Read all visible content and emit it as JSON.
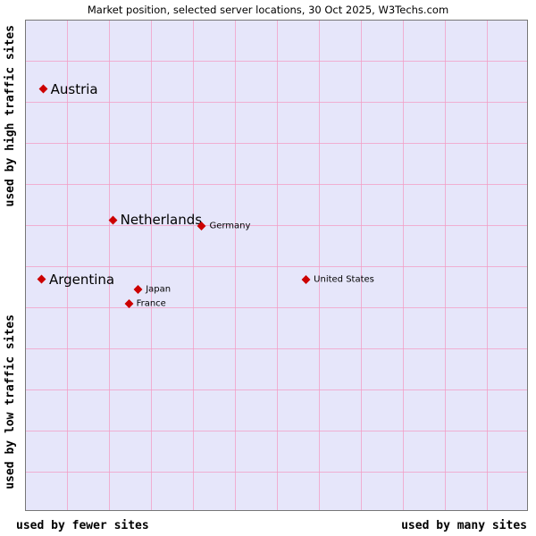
{
  "title": "Market position, selected server locations, 30 Oct 2025, W3Techs.com",
  "axes": {
    "y_top": "used by high traffic sites",
    "y_bottom": "used by low traffic sites",
    "x_left": "used by fewer sites",
    "x_right": "used by many sites"
  },
  "colors": {
    "plot_background": "#e6e6fa",
    "grid": "#f39cc4",
    "marker": "#cc0000",
    "text": "#000000"
  },
  "chart_data": {
    "type": "scatter",
    "title": "Market position, selected server locations, 30 Oct 2025, W3Techs.com",
    "xlabel_left": "used by fewer sites",
    "xlabel_right": "used by many sites",
    "ylabel_top": "used by high traffic sites",
    "ylabel_bottom": "used by low traffic sites",
    "x_range": [
      0,
      100
    ],
    "y_range": [
      0,
      100
    ],
    "grid": true,
    "marker": {
      "shape": "diamond",
      "color": "#cc0000"
    },
    "points": [
      {
        "label": "Austria",
        "x": 3.5,
        "y": 86.0,
        "label_size": "large"
      },
      {
        "label": "Netherlands",
        "x": 17.4,
        "y": 59.3,
        "label_size": "large"
      },
      {
        "label": "Germany",
        "x": 35.2,
        "y": 58.0,
        "label_size": "small"
      },
      {
        "label": "Argentina",
        "x": 3.2,
        "y": 47.1,
        "label_size": "large"
      },
      {
        "label": "Japan",
        "x": 22.5,
        "y": 45.1,
        "label_size": "small"
      },
      {
        "label": "France",
        "x": 20.6,
        "y": 42.1,
        "label_size": "small"
      },
      {
        "label": "United States",
        "x": 56.0,
        "y": 47.1,
        "label_size": "small"
      }
    ]
  }
}
